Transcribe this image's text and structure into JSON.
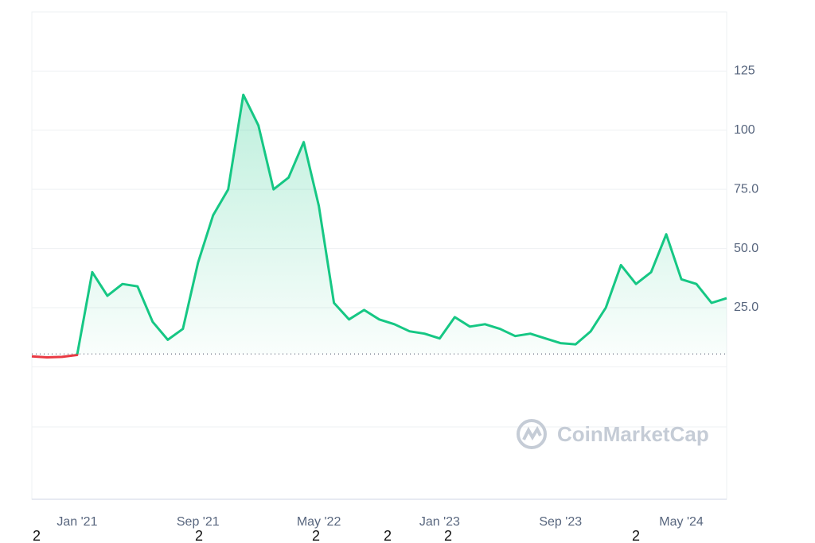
{
  "chart_data": {
    "type": "line",
    "x": [
      "2020-10",
      "2020-11",
      "2020-12",
      "2021-01",
      "2021-02",
      "2021-03",
      "2021-04",
      "2021-05",
      "2021-06",
      "2021-07",
      "2021-08",
      "2021-09",
      "2021-10",
      "2021-11",
      "2021-12",
      "2022-01",
      "2022-02",
      "2022-03",
      "2022-04",
      "2022-05",
      "2022-06",
      "2022-07",
      "2022-08",
      "2022-09",
      "2022-10",
      "2022-11",
      "2022-12",
      "2023-01",
      "2023-02",
      "2023-03",
      "2023-04",
      "2023-05",
      "2023-06",
      "2023-07",
      "2023-08",
      "2023-09",
      "2023-10",
      "2023-11",
      "2023-12",
      "2024-01",
      "2024-02",
      "2024-03",
      "2024-04",
      "2024-05",
      "2024-06",
      "2024-07",
      "2024-08"
    ],
    "series": [
      {
        "values": [
          4.4,
          4.0,
          4.2,
          5,
          40,
          30,
          35,
          34,
          19,
          11.4,
          16,
          44,
          64,
          75,
          115,
          102,
          75,
          80,
          95,
          68,
          27,
          20,
          24,
          20,
          18,
          15,
          14,
          12,
          21,
          17,
          18,
          16,
          13,
          14,
          12,
          10,
          9.5,
          15,
          25,
          43,
          35,
          40,
          56,
          37,
          35,
          27,
          29
        ],
        "color": "#16c784",
        "down_color": "#ea3943"
      }
    ],
    "baseline": 5.4,
    "xlim": [
      "2020-10",
      "2024-08"
    ],
    "xticks": [
      {
        "value": "2021-01",
        "label": "Jan '21"
      },
      {
        "value": "2021-09",
        "label": "Sep '21"
      },
      {
        "value": "2022-05",
        "label": "May '22"
      },
      {
        "value": "2023-01",
        "label": "Jan '23"
      },
      {
        "value": "2023-09",
        "label": "Sep '23"
      },
      {
        "value": "2024-05",
        "label": "May '24"
      }
    ],
    "ylim": [
      -56,
      150
    ],
    "yticks": [
      {
        "value": 25,
        "label": "25.0"
      },
      {
        "value": 50,
        "label": "50.0"
      },
      {
        "value": 75,
        "label": "75.0"
      },
      100,
      125
    ],
    "grid": true,
    "watermark": "CoinMarketCap",
    "footer_marks": [
      "2",
      "2",
      "2",
      "2",
      "2",
      "2"
    ]
  }
}
